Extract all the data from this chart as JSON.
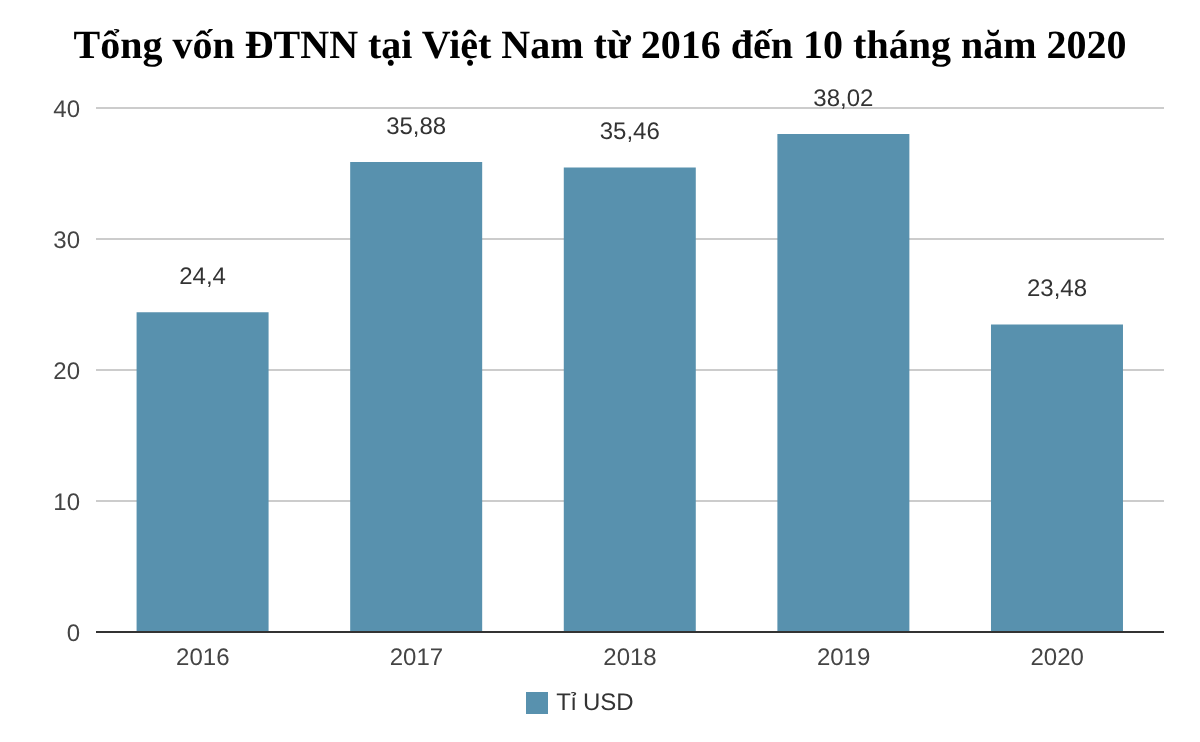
{
  "chart_data": {
    "type": "bar",
    "title": "Tổng vốn ĐTNN tại Việt Nam từ 2016 đến 10 tháng năm 2020",
    "categories": [
      "2016",
      "2017",
      "2018",
      "2019",
      "2020"
    ],
    "series": [
      {
        "name": "Tỉ USD",
        "color": "#5891ae",
        "values": [
          24.4,
          35.88,
          35.46,
          38.02,
          23.48
        ],
        "value_labels": [
          "24,4",
          "35,88",
          "35,46",
          "38,02",
          "23,48"
        ]
      }
    ],
    "ylim": [
      0,
      40
    ],
    "yticks": [
      0,
      10,
      20,
      30,
      40
    ],
    "grid": "y",
    "legend": "bottom"
  }
}
